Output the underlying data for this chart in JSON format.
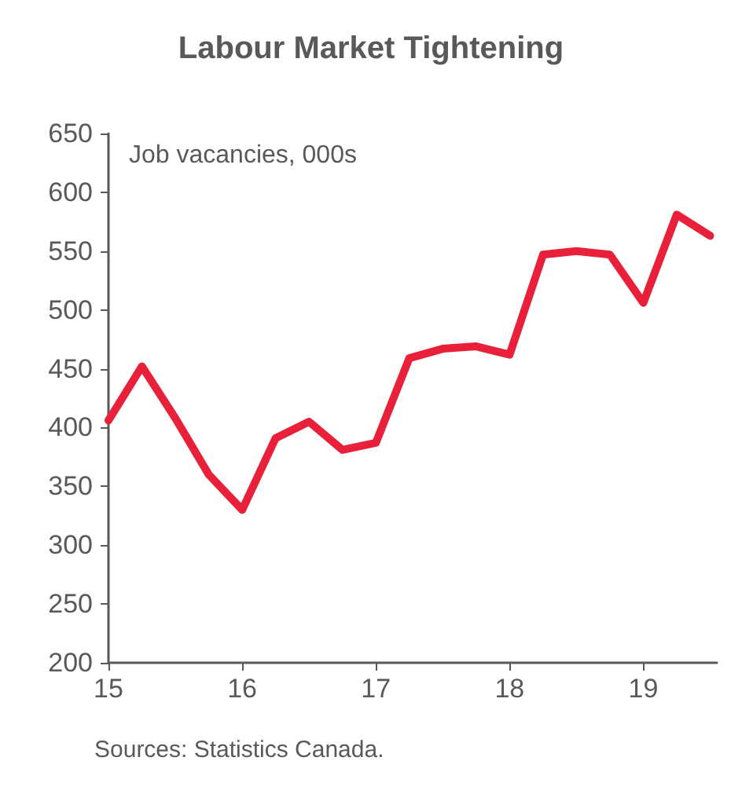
{
  "chart_data": {
    "type": "line",
    "title": "Labour Market Tightening",
    "annotations": [
      "Job vacancies, 000s",
      "Sources: Statistics Canada."
    ],
    "x": [
      15,
      15.25,
      15.5,
      15.75,
      16,
      16.25,
      16.5,
      16.75,
      17,
      17.25,
      17.5,
      17.75,
      18,
      18.25,
      18.5,
      18.75,
      19,
      19.25,
      19.5
    ],
    "series": [
      {
        "color": "#e8203a",
        "values": [
          406,
          452,
          408,
          360,
          330,
          391,
          405,
          381,
          387,
          459,
          467,
          469,
          462,
          547,
          550,
          547,
          506,
          581,
          563
        ]
      }
    ],
    "xlim": [
      15,
      19.55
    ],
    "xticks": [
      15,
      16,
      17,
      18,
      19
    ],
    "ylim": [
      200,
      650
    ],
    "yticks": [
      200,
      250,
      300,
      350,
      400,
      450,
      500,
      550,
      600,
      650
    ],
    "grid": false,
    "marker": "none",
    "line_style": "solid"
  }
}
